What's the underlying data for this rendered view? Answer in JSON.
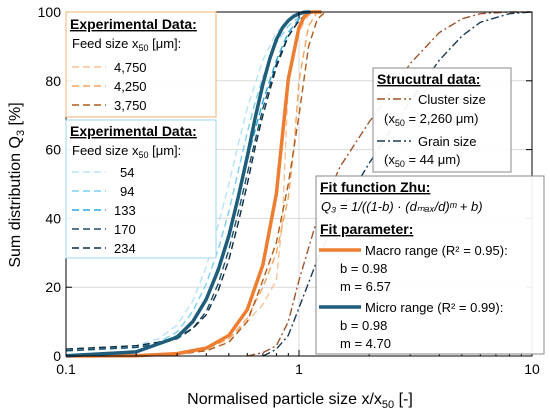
{
  "chart_data": {
    "type": "line",
    "xlabel": "Normalised particle size x/x",
    "xlabel_sub": "50",
    "xlabel_unit": " [-]",
    "ylabel": "Sum distribution Q",
    "ylabel_sub": "3",
    "ylabel_unit": " [%]",
    "x_scale": "log",
    "xlim": [
      0.1,
      10
    ],
    "ylim": [
      0,
      100
    ],
    "x_ticks": [
      0.1,
      1,
      10
    ],
    "x_tick_labels": [
      "0.1",
      "1",
      "10"
    ],
    "y_ticks": [
      0,
      20,
      40,
      60,
      80,
      100
    ],
    "y_tick_labels": [
      "0",
      "20",
      "40",
      "60",
      "80",
      "100"
    ],
    "grid": true,
    "legend_macro": {
      "title": "Experimental Data:",
      "subtitle_prefix": "Feed size x",
      "subtitle_sub": "50",
      "subtitle_suffix": " [μm]:",
      "entries": [
        "4,750",
        "4,250",
        "3,750"
      ]
    },
    "legend_micro": {
      "title": "Experimental Data:",
      "subtitle_prefix": "Feed size x",
      "subtitle_sub": "50",
      "subtitle_suffix": " [μm]:",
      "entries": [
        "54",
        "94",
        "133",
        "170",
        "234"
      ]
    },
    "legend_struct": {
      "title": "Strucutral data:",
      "entries": [
        {
          "label": "Cluster size",
          "detail_prefix": "(x",
          "detail_sub": "50",
          "detail_suffix": " = 2,260 μm)"
        },
        {
          "label": "Grain size",
          "detail_prefix": "(x",
          "detail_sub": "50",
          "detail_suffix": " = 44 μm)"
        }
      ]
    },
    "fit_box": {
      "title": "Fit function Zhu:",
      "formula": "Q₃ = 1/((1-b) · (dₘₐₓ/d)ᵐ + b)",
      "param_title": "Fit parameter:",
      "macro": {
        "label": "Macro range (R² = 0.95):",
        "b": "b = 0.98",
        "m": "m = 6.57"
      },
      "micro": {
        "label": "Micro range (R² = 0.99):",
        "b": "b = 0.98",
        "m": "m = 4.70"
      }
    },
    "series": [
      {
        "name": "Macro range (R² = 0.95):",
        "group": "fit",
        "color": "#ED7D31",
        "style": "solid",
        "x": [
          0.1,
          0.2,
          0.3,
          0.4,
          0.5,
          0.6,
          0.7,
          0.8,
          0.9,
          1.0,
          1.05,
          1.1,
          1.15,
          1.25
        ],
        "y": [
          0.0,
          0.1,
          0.7,
          2.3,
          6.0,
          13.5,
          26.5,
          47.2,
          80.5,
          95.5,
          98.5,
          99.8,
          100,
          100
        ]
      },
      {
        "name": "Micro range (R² = 0.99):",
        "group": "fit",
        "color": "#1F5D7A",
        "style": "solid",
        "x": [
          0.1,
          0.2,
          0.3,
          0.35,
          0.4,
          0.45,
          0.5,
          0.55,
          0.6,
          0.65,
          0.7,
          0.75,
          0.8,
          0.85,
          0.9,
          0.95,
          1.0,
          1.05,
          1.12
        ],
        "y": [
          0.1,
          1.2,
          5.5,
          10.0,
          16.5,
          25.0,
          35.0,
          46.5,
          58.0,
          69.5,
          79.0,
          86.5,
          92.0,
          95.5,
          97.5,
          98.8,
          99.5,
          99.9,
          100
        ]
      },
      {
        "name": "4,750",
        "group": "macro",
        "color": "#F9C398",
        "style": "dash",
        "x": [
          0.1,
          0.3,
          0.4,
          0.5,
          0.6,
          0.7,
          0.8,
          0.85,
          0.9,
          0.95,
          1.0,
          1.05,
          1.1,
          1.2
        ],
        "y": [
          0,
          0.5,
          2,
          5,
          10,
          15,
          22,
          40,
          80,
          88,
          94,
          97,
          99,
          100
        ]
      },
      {
        "name": "4,250",
        "group": "macro",
        "color": "#F4A460",
        "style": "dash",
        "x": [
          0.1,
          0.3,
          0.4,
          0.5,
          0.6,
          0.7,
          0.8,
          0.9,
          0.95,
          1.0,
          1.1,
          1.2
        ],
        "y": [
          0,
          0.5,
          2,
          5,
          11,
          20,
          30,
          46,
          60,
          80,
          96,
          100
        ]
      },
      {
        "name": "3,750",
        "group": "macro",
        "color": "#B05A1A",
        "style": "dash",
        "x": [
          0.1,
          0.3,
          0.4,
          0.5,
          0.6,
          0.7,
          0.8,
          0.9,
          1.0,
          1.1,
          1.2,
          1.3
        ],
        "y": [
          0,
          0.5,
          1.5,
          4,
          10,
          22,
          33,
          50,
          70,
          90,
          98,
          100
        ]
      },
      {
        "name": "54",
        "group": "micro",
        "color": "#B8E3F5",
        "style": "dash",
        "x": [
          0.1,
          0.2,
          0.25,
          0.3,
          0.35,
          0.4,
          0.45,
          0.5,
          0.55,
          0.6,
          0.7,
          0.8,
          0.9,
          1.0,
          1.1
        ],
        "y": [
          1.5,
          3,
          5,
          9,
          16,
          26,
          38,
          50,
          62,
          72,
          86,
          94,
          97.5,
          99,
          100
        ]
      },
      {
        "name": "94",
        "group": "micro",
        "color": "#7FD0F0",
        "style": "dash",
        "x": [
          0.1,
          0.2,
          0.25,
          0.3,
          0.35,
          0.4,
          0.45,
          0.5,
          0.55,
          0.6,
          0.65,
          0.7,
          0.8,
          0.9,
          1.0,
          1.1
        ],
        "y": [
          1.5,
          2.5,
          4,
          7,
          13,
          21,
          31,
          42,
          54,
          65,
          74,
          81,
          91,
          96,
          98.5,
          100
        ]
      },
      {
        "name": "133",
        "group": "micro",
        "color": "#2AA8E0",
        "style": "dash",
        "x": [
          0.1,
          0.2,
          0.25,
          0.3,
          0.35,
          0.4,
          0.45,
          0.5,
          0.55,
          0.6,
          0.65,
          0.7,
          0.8,
          0.9,
          1.0,
          1.1
        ],
        "y": [
          1.5,
          2.5,
          3.5,
          6,
          10,
          17,
          26,
          36,
          47,
          57,
          66,
          74,
          86,
          94,
          98,
          100
        ]
      },
      {
        "name": "170",
        "group": "micro",
        "color": "#1A4F6E",
        "style": "dash",
        "x": [
          0.1,
          0.2,
          0.25,
          0.3,
          0.35,
          0.4,
          0.45,
          0.5,
          0.55,
          0.6,
          0.65,
          0.7,
          0.8,
          0.9,
          1.0,
          1.1
        ],
        "y": [
          1.5,
          2.5,
          3.5,
          5,
          8,
          13,
          21,
          31,
          42,
          53,
          63,
          72,
          85,
          93,
          97.5,
          100
        ]
      },
      {
        "name": "234",
        "group": "micro",
        "color": "#0D2B3E",
        "style": "dash",
        "x": [
          0.1,
          0.2,
          0.25,
          0.3,
          0.35,
          0.4,
          0.45,
          0.5,
          0.55,
          0.6,
          0.65,
          0.7,
          0.8,
          0.9,
          1.0,
          1.1
        ],
        "y": [
          2,
          3,
          4,
          5.5,
          8,
          12,
          19,
          28,
          39,
          50,
          61,
          70,
          84,
          93,
          97.5,
          100
        ]
      },
      {
        "name": "Cluster size",
        "group": "struct",
        "color": "#A0522D",
        "style": "dashdot",
        "x": [
          0.6,
          0.7,
          0.8,
          0.9,
          1.0,
          1.2,
          1.5,
          2.0,
          2.5,
          3.0,
          4.0,
          5.0,
          6.0,
          8.0,
          10.0
        ],
        "y": [
          0,
          1,
          3,
          10,
          22,
          40,
          55,
          68,
          77,
          85,
          94,
          98,
          99.5,
          100,
          100
        ]
      },
      {
        "name": "Grain size",
        "group": "struct",
        "color": "#1C3A52",
        "style": "dashdot",
        "x": [
          0.7,
          0.75,
          0.8,
          0.9,
          1.0,
          1.2,
          1.5,
          2.0,
          2.5,
          3.0,
          4.0,
          5.0,
          6.0,
          8.0,
          10.0
        ],
        "y": [
          0,
          1,
          2,
          6,
          14,
          28,
          42,
          56,
          66,
          74,
          86,
          93,
          97,
          99.5,
          100
        ]
      }
    ]
  }
}
